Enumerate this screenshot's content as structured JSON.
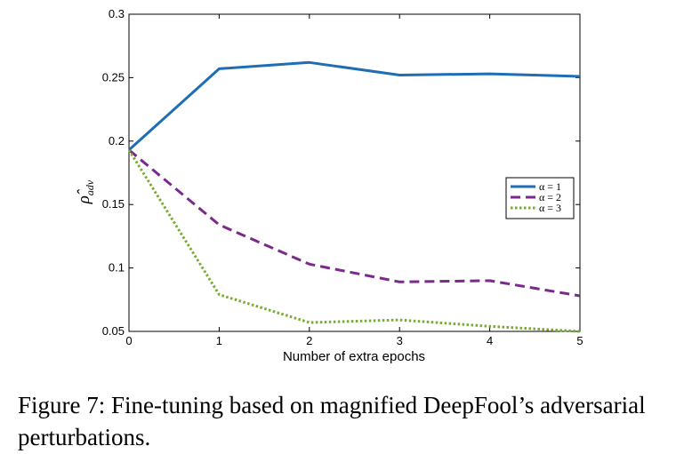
{
  "chart_data": {
    "type": "line",
    "xlabel": "Number of extra epochs",
    "ylabel": "ρ̂_adv",
    "ylabel_main": "ρ̂",
    "ylabel_sub": "adv",
    "x": [
      0,
      1,
      2,
      3,
      4,
      5
    ],
    "xlim": [
      0,
      5
    ],
    "ylim": [
      0.05,
      0.3
    ],
    "xticks": [
      0,
      1,
      2,
      3,
      4,
      5
    ],
    "yticks": [
      0.05,
      0.1,
      0.15,
      0.2,
      0.25,
      0.3
    ],
    "ytick_labels": [
      "0.05",
      "0.1",
      "0.15",
      "0.2",
      "0.25",
      "0.3"
    ],
    "grid": false,
    "legend_position": "center-right",
    "series": [
      {
        "name": "α = 1",
        "style": "solid",
        "color": "#1f6db4",
        "values": [
          0.193,
          0.257,
          0.262,
          0.252,
          0.253,
          0.251
        ]
      },
      {
        "name": "α = 2",
        "style": "dashed",
        "color": "#7b2a8c",
        "values": [
          0.193,
          0.134,
          0.103,
          0.089,
          0.09,
          0.078
        ]
      },
      {
        "name": "α = 3",
        "style": "dotted",
        "color": "#77ac30",
        "values": [
          0.193,
          0.079,
          0.057,
          0.059,
          0.054,
          0.05
        ]
      }
    ]
  },
  "caption": "Figure 7: Fine-tuning based on magnified DeepFool’s adversarial perturbations."
}
